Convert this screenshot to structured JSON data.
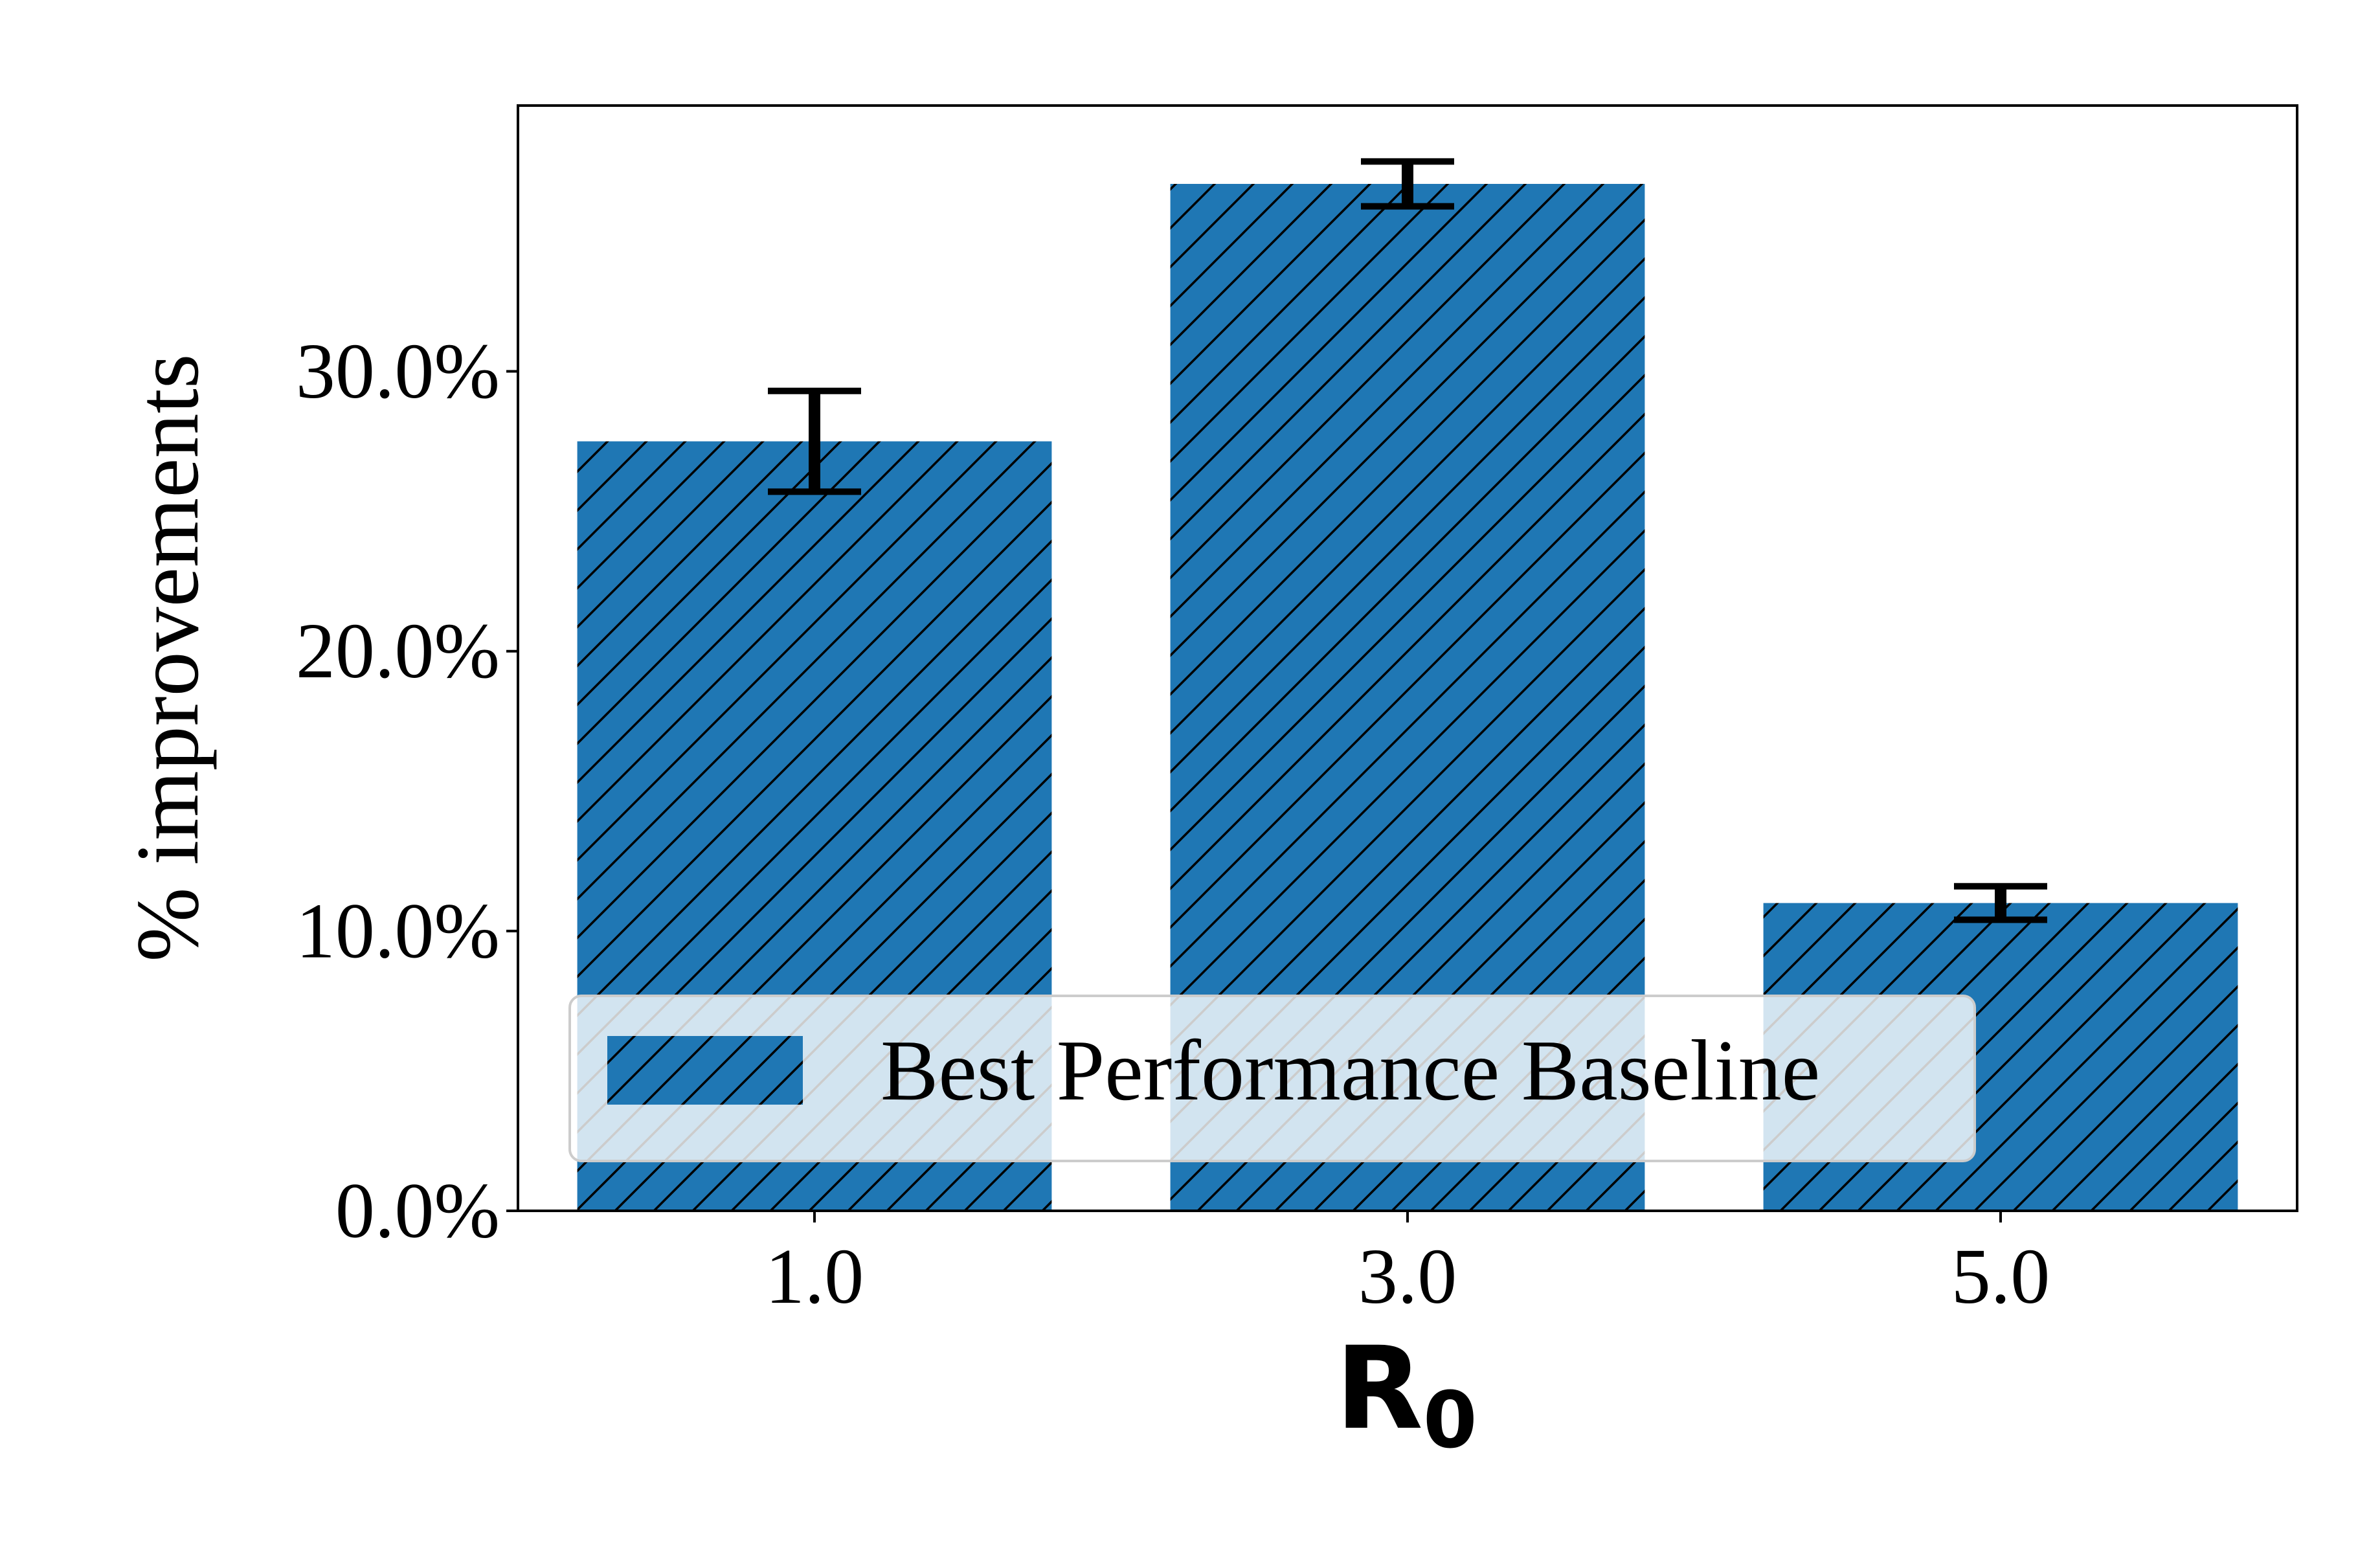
{
  "colors": {
    "bar": "#1f77b4",
    "hatch": "#000000",
    "axis": "#000000",
    "errorbar": "#000000",
    "legend_frame": "#cccccc",
    "background": "#ffffff"
  },
  "chart_data": {
    "type": "bar",
    "title": "",
    "xlabel": "R",
    "xlabel_subscript": "0",
    "ylabel": "% improvements",
    "categories": [
      "1.0",
      "3.0",
      "5.0"
    ],
    "series": [
      {
        "name": "Best Performance Baseline",
        "values": [
          27.5,
          36.7,
          11.0
        ],
        "errors": [
          1.8,
          0.8,
          0.6
        ],
        "hatch": "diagonal"
      }
    ],
    "ylim": [
      0,
      39.5
    ],
    "yticks": [
      0,
      10,
      20,
      30
    ],
    "ytick_labels": [
      "0.0%",
      "10.0%",
      "20.0%",
      "30.0%"
    ],
    "grid": false,
    "legend": {
      "placement": "lower-center",
      "entries": [
        "Best Performance Baseline"
      ]
    }
  }
}
